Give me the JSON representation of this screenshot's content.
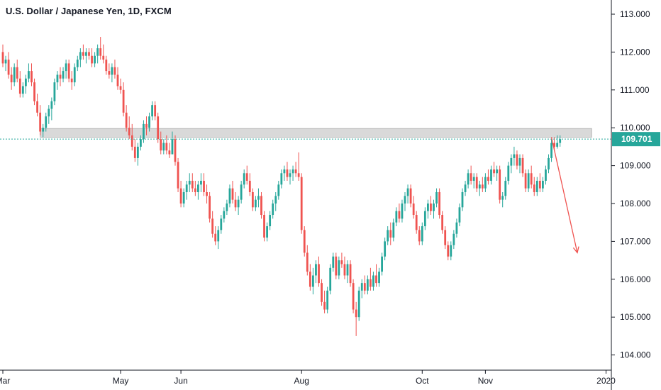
{
  "header": {
    "title": "U.S. Dollar / Japanese Yen, 1D, FXCM"
  },
  "colors": {
    "up": "#26a69a",
    "down": "#ef5350",
    "last_price": "#26a69a",
    "zone_fill": "#d9d9d9",
    "zone_stroke": "#b8b8b8",
    "arrow": "#ef5350",
    "axis": "#131722"
  },
  "chart_data": {
    "type": "candlestick",
    "symbol": "U.S. Dollar / Japanese Yen",
    "interval": "1D",
    "source": "FXCM",
    "ylim": [
      103.7,
      113.3
    ],
    "y_ticks": [
      "113.000",
      "112.000",
      "111.000",
      "110.000",
      "109.000",
      "108.000",
      "107.000",
      "106.000",
      "105.000",
      "104.000"
    ],
    "x_ticks": [
      {
        "label": "Mar",
        "index": 0
      },
      {
        "label": "May",
        "index": 41
      },
      {
        "label": "Jun",
        "index": 62
      },
      {
        "label": "Aug",
        "index": 104
      },
      {
        "label": "Oct",
        "index": 146
      },
      {
        "label": "Nov",
        "index": 168
      },
      {
        "label": "2020",
        "index": 210
      }
    ],
    "last_price": 109.701,
    "last_price_label": "109.701",
    "resistance_zone": {
      "low": 109.75,
      "high": 109.98,
      "start_index": 13,
      "end_index": 205
    },
    "projection": {
      "from_index": 191,
      "from_value": 109.75,
      "to_index": 200,
      "to_value": 106.7
    },
    "candles": [
      [
        112.0,
        112.2,
        111.6,
        111.7
      ],
      [
        111.7,
        111.9,
        111.5,
        111.8
      ],
      [
        111.8,
        112.0,
        111.3,
        111.4
      ],
      [
        111.4,
        111.6,
        111.0,
        111.2
      ],
      [
        111.2,
        111.7,
        111.1,
        111.6
      ],
      [
        111.6,
        111.8,
        111.2,
        111.3
      ],
      [
        111.3,
        111.5,
        110.8,
        110.9
      ],
      [
        110.9,
        111.2,
        110.8,
        111.1
      ],
      [
        111.1,
        111.4,
        110.9,
        111.3
      ],
      [
        111.3,
        111.7,
        111.2,
        111.5
      ],
      [
        111.5,
        111.7,
        111.1,
        111.2
      ],
      [
        111.2,
        111.3,
        110.6,
        110.7
      ],
      [
        110.7,
        110.9,
        110.3,
        110.4
      ],
      [
        110.4,
        110.6,
        109.8,
        109.9
      ],
      [
        109.9,
        110.1,
        109.75,
        110.0
      ],
      [
        110.0,
        110.4,
        109.9,
        110.3
      ],
      [
        110.3,
        110.6,
        110.1,
        110.5
      ],
      [
        110.5,
        110.8,
        110.2,
        110.7
      ],
      [
        110.7,
        111.3,
        110.6,
        111.2
      ],
      [
        111.2,
        111.5,
        111.0,
        111.4
      ],
      [
        111.4,
        111.6,
        111.1,
        111.3
      ],
      [
        111.3,
        111.6,
        111.2,
        111.5
      ],
      [
        111.5,
        111.8,
        111.3,
        111.7
      ],
      [
        111.7,
        111.8,
        111.2,
        111.3
      ],
      [
        111.3,
        111.5,
        111.0,
        111.2
      ],
      [
        111.2,
        111.7,
        111.1,
        111.6
      ],
      [
        111.6,
        111.9,
        111.5,
        111.8
      ],
      [
        111.8,
        112.1,
        111.6,
        112.0
      ],
      [
        112.0,
        112.2,
        111.8,
        111.9
      ],
      [
        111.9,
        112.1,
        111.7,
        112.0
      ],
      [
        112.0,
        112.1,
        111.8,
        111.9
      ],
      [
        111.9,
        112.1,
        111.6,
        111.7
      ],
      [
        111.7,
        112.0,
        111.6,
        111.9
      ],
      [
        111.9,
        112.2,
        111.7,
        112.1
      ],
      [
        112.1,
        112.4,
        111.8,
        111.9
      ],
      [
        111.9,
        112.2,
        111.7,
        111.8
      ],
      [
        111.8,
        111.9,
        111.4,
        111.5
      ],
      [
        111.5,
        111.7,
        111.3,
        111.4
      ],
      [
        111.4,
        111.7,
        111.2,
        111.6
      ],
      [
        111.6,
        111.8,
        111.3,
        111.4
      ],
      [
        111.4,
        111.6,
        111.0,
        111.1
      ],
      [
        111.1,
        111.3,
        110.9,
        111.0
      ],
      [
        111.0,
        111.2,
        110.3,
        110.4
      ],
      [
        110.4,
        110.6,
        109.9,
        110.0
      ],
      [
        110.0,
        110.3,
        109.7,
        109.8
      ],
      [
        109.8,
        110.1,
        109.4,
        109.5
      ],
      [
        109.5,
        109.7,
        109.1,
        109.2
      ],
      [
        109.2,
        109.6,
        109.0,
        109.5
      ],
      [
        109.5,
        109.8,
        109.4,
        109.7
      ],
      [
        109.7,
        110.2,
        109.6,
        110.1
      ],
      [
        110.1,
        110.3,
        109.8,
        110.0
      ],
      [
        110.0,
        110.4,
        109.9,
        110.3
      ],
      [
        110.3,
        110.7,
        110.2,
        110.6
      ],
      [
        110.6,
        110.7,
        110.2,
        110.3
      ],
      [
        110.3,
        110.4,
        109.6,
        109.7
      ],
      [
        109.7,
        109.9,
        109.3,
        109.4
      ],
      [
        109.4,
        109.7,
        109.3,
        109.6
      ],
      [
        109.6,
        109.8,
        109.3,
        109.4
      ],
      [
        109.4,
        109.6,
        109.2,
        109.3
      ],
      [
        109.3,
        109.9,
        109.3,
        109.7
      ],
      [
        109.7,
        109.8,
        109.0,
        109.1
      ],
      [
        109.1,
        109.2,
        108.3,
        108.4
      ],
      [
        108.4,
        108.6,
        107.9,
        108.0
      ],
      [
        108.0,
        108.4,
        107.9,
        108.3
      ],
      [
        108.3,
        108.6,
        108.1,
        108.5
      ],
      [
        108.5,
        108.8,
        108.3,
        108.6
      ],
      [
        108.6,
        108.8,
        108.3,
        108.4
      ],
      [
        108.4,
        108.6,
        108.2,
        108.3
      ],
      [
        108.3,
        108.6,
        108.1,
        108.5
      ],
      [
        108.5,
        108.8,
        108.3,
        108.6
      ],
      [
        108.6,
        108.8,
        108.2,
        108.3
      ],
      [
        108.3,
        108.5,
        108.0,
        108.2
      ],
      [
        108.2,
        108.3,
        107.5,
        107.6
      ],
      [
        107.6,
        107.8,
        107.1,
        107.2
      ],
      [
        107.2,
        107.4,
        106.9,
        107.0
      ],
      [
        107.0,
        107.4,
        106.8,
        107.3
      ],
      [
        107.3,
        107.7,
        107.2,
        107.6
      ],
      [
        107.6,
        107.9,
        107.5,
        107.8
      ],
      [
        107.8,
        108.1,
        107.7,
        108.0
      ],
      [
        108.0,
        108.5,
        107.9,
        108.4
      ],
      [
        108.4,
        108.6,
        108.0,
        108.1
      ],
      [
        108.1,
        108.3,
        107.8,
        107.9
      ],
      [
        107.9,
        108.2,
        107.7,
        108.1
      ],
      [
        108.1,
        108.6,
        108.0,
        108.5
      ],
      [
        108.5,
        108.9,
        108.4,
        108.8
      ],
      [
        108.8,
        109.0,
        108.5,
        108.6
      ],
      [
        108.6,
        108.8,
        108.2,
        108.3
      ],
      [
        108.3,
        108.4,
        107.8,
        107.9
      ],
      [
        107.9,
        108.2,
        107.8,
        108.1
      ],
      [
        108.1,
        108.4,
        107.9,
        108.2
      ],
      [
        108.2,
        108.3,
        107.6,
        107.7
      ],
      [
        107.7,
        107.8,
        107.0,
        107.1
      ],
      [
        107.1,
        107.5,
        107.0,
        107.4
      ],
      [
        107.4,
        107.8,
        107.3,
        107.7
      ],
      [
        107.7,
        108.1,
        107.6,
        108.0
      ],
      [
        108.0,
        108.3,
        107.8,
        108.2
      ],
      [
        108.2,
        108.6,
        108.1,
        108.5
      ],
      [
        108.5,
        108.9,
        108.4,
        108.8
      ],
      [
        108.8,
        109.0,
        108.6,
        108.9
      ],
      [
        108.9,
        109.1,
        108.6,
        108.7
      ],
      [
        108.7,
        108.9,
        108.5,
        108.8
      ],
      [
        108.8,
        109.0,
        108.6,
        108.9
      ],
      [
        108.9,
        109.1,
        108.7,
        108.8
      ],
      [
        108.8,
        109.35,
        108.6,
        108.7
      ],
      [
        108.7,
        108.8,
        107.2,
        107.3
      ],
      [
        107.3,
        107.4,
        106.6,
        106.7
      ],
      [
        106.7,
        106.9,
        106.1,
        106.2
      ],
      [
        106.2,
        106.4,
        105.7,
        105.8
      ],
      [
        105.8,
        106.3,
        105.6,
        106.1
      ],
      [
        106.1,
        106.5,
        105.9,
        106.4
      ],
      [
        106.4,
        106.6,
        105.8,
        105.9
      ],
      [
        105.9,
        106.0,
        105.3,
        105.4
      ],
      [
        105.4,
        105.7,
        105.1,
        105.2
      ],
      [
        105.2,
        105.8,
        105.1,
        105.7
      ],
      [
        105.7,
        106.4,
        105.6,
        106.3
      ],
      [
        106.3,
        106.7,
        106.2,
        106.6
      ],
      [
        106.6,
        106.7,
        106.0,
        106.1
      ],
      [
        106.1,
        106.6,
        106.0,
        106.5
      ],
      [
        106.5,
        106.7,
        106.3,
        106.4
      ],
      [
        106.4,
        106.6,
        106.0,
        106.1
      ],
      [
        106.1,
        106.5,
        105.9,
        106.4
      ],
      [
        106.4,
        106.5,
        105.8,
        105.9
      ],
      [
        105.9,
        106.0,
        105.1,
        105.2
      ],
      [
        105.2,
        105.4,
        104.5,
        105.0
      ],
      [
        105.0,
        105.8,
        104.9,
        105.7
      ],
      [
        105.7,
        106.0,
        105.5,
        105.9
      ],
      [
        105.9,
        106.1,
        105.6,
        105.7
      ],
      [
        105.7,
        106.1,
        105.6,
        106.0
      ],
      [
        106.0,
        106.3,
        105.7,
        105.8
      ],
      [
        105.8,
        106.2,
        105.7,
        106.1
      ],
      [
        106.1,
        106.4,
        105.8,
        105.9
      ],
      [
        105.9,
        106.3,
        105.8,
        106.2
      ],
      [
        106.2,
        106.7,
        106.1,
        106.6
      ],
      [
        106.6,
        107.1,
        106.5,
        107.0
      ],
      [
        107.0,
        107.4,
        106.9,
        107.3
      ],
      [
        107.3,
        107.5,
        106.9,
        107.1
      ],
      [
        107.1,
        107.6,
        107.0,
        107.5
      ],
      [
        107.5,
        107.9,
        107.4,
        107.8
      ],
      [
        107.8,
        108.0,
        107.5,
        107.6
      ],
      [
        107.6,
        108.1,
        107.5,
        108.0
      ],
      [
        108.0,
        108.3,
        107.8,
        108.2
      ],
      [
        108.2,
        108.5,
        108.0,
        108.4
      ],
      [
        108.4,
        108.5,
        107.9,
        108.0
      ],
      [
        108.0,
        108.2,
        107.6,
        107.7
      ],
      [
        107.7,
        107.8,
        107.2,
        107.3
      ],
      [
        107.3,
        107.4,
        106.9,
        107.0
      ],
      [
        107.0,
        107.5,
        106.9,
        107.4
      ],
      [
        107.4,
        107.9,
        107.3,
        107.8
      ],
      [
        107.8,
        108.1,
        107.6,
        108.0
      ],
      [
        108.0,
        108.2,
        107.7,
        107.8
      ],
      [
        107.8,
        108.1,
        107.6,
        108.0
      ],
      [
        108.0,
        108.4,
        107.9,
        108.3
      ],
      [
        108.3,
        108.4,
        107.6,
        107.7
      ],
      [
        107.7,
        107.8,
        107.2,
        107.3
      ],
      [
        107.3,
        107.4,
        106.8,
        106.9
      ],
      [
        106.9,
        107.0,
        106.5,
        106.6
      ],
      [
        106.6,
        107.0,
        106.5,
        106.9
      ],
      [
        106.9,
        107.3,
        106.8,
        107.2
      ],
      [
        107.2,
        107.6,
        107.1,
        107.5
      ],
      [
        107.5,
        108.0,
        107.4,
        107.9
      ],
      [
        107.9,
        108.4,
        107.8,
        108.3
      ],
      [
        108.3,
        108.6,
        108.2,
        108.5
      ],
      [
        108.5,
        108.9,
        108.4,
        108.8
      ],
      [
        108.8,
        109.0,
        108.5,
        108.6
      ],
      [
        108.6,
        108.8,
        108.4,
        108.7
      ],
      [
        108.7,
        108.8,
        108.3,
        108.4
      ],
      [
        108.4,
        108.6,
        108.2,
        108.5
      ],
      [
        108.5,
        108.7,
        108.3,
        108.4
      ],
      [
        108.4,
        108.8,
        108.3,
        108.7
      ],
      [
        108.7,
        108.9,
        108.5,
        108.6
      ],
      [
        108.6,
        109.0,
        108.5,
        108.9
      ],
      [
        108.9,
        109.1,
        108.7,
        108.8
      ],
      [
        108.8,
        109.0,
        108.6,
        108.9
      ],
      [
        108.9,
        109.0,
        108.0,
        108.1
      ],
      [
        108.1,
        108.3,
        107.9,
        108.2
      ],
      [
        108.2,
        108.7,
        108.1,
        108.6
      ],
      [
        108.6,
        109.1,
        108.5,
        109.0
      ],
      [
        109.0,
        109.3,
        108.8,
        109.2
      ],
      [
        109.2,
        109.5,
        109.0,
        109.3
      ],
      [
        109.3,
        109.4,
        108.9,
        109.0
      ],
      [
        109.0,
        109.3,
        108.8,
        109.2
      ],
      [
        109.2,
        109.3,
        108.7,
        108.8
      ],
      [
        108.8,
        108.9,
        108.3,
        108.4
      ],
      [
        108.4,
        108.9,
        108.3,
        108.8
      ],
      [
        108.8,
        109.0,
        108.4,
        108.5
      ],
      [
        108.5,
        108.7,
        108.2,
        108.3
      ],
      [
        108.3,
        108.7,
        108.2,
        108.6
      ],
      [
        108.6,
        108.8,
        108.3,
        108.4
      ],
      [
        108.4,
        108.7,
        108.3,
        108.6
      ],
      [
        108.6,
        109.0,
        108.5,
        108.9
      ],
      [
        108.9,
        109.3,
        108.8,
        109.2
      ],
      [
        109.2,
        109.7,
        109.1,
        109.6
      ],
      [
        109.6,
        109.75,
        109.4,
        109.5
      ],
      [
        109.5,
        109.8,
        109.45,
        109.6
      ],
      [
        109.6,
        109.8,
        109.5,
        109.701
      ]
    ]
  }
}
